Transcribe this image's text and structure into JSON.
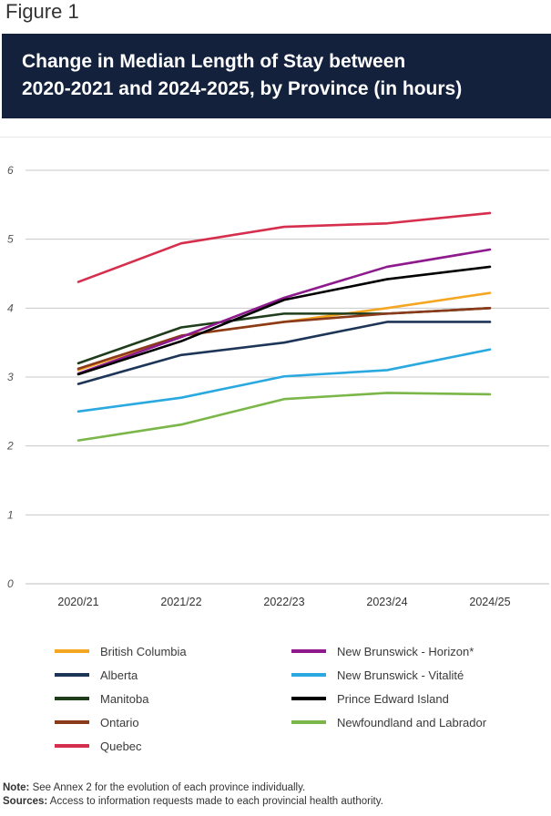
{
  "figure_label": "Figure 1",
  "title_lines": [
    "Change in Median Length of Stay between",
    "2020-2021 and 2024-2025, by Province (in hours)"
  ],
  "note_label": "Note:",
  "note_text": " See Annex 2 for the evolution of each province individually.",
  "sources_label": "Sources:",
  "sources_text": " Access to information requests made to each provincial health authority.",
  "chart_data": {
    "type": "line",
    "categories": [
      "2020/21",
      "2021/22",
      "2022/23",
      "2023/24",
      "2024/25"
    ],
    "ylim": [
      0,
      6
    ],
    "yticks": [
      "0",
      "1",
      "2",
      "3",
      "4",
      "5",
      "6"
    ],
    "grid": true,
    "legend_position": "bottom",
    "series": [
      {
        "name": "British Columbia",
        "color": "#f5a623",
        "values": [
          3.1,
          3.6,
          3.8,
          4.0,
          4.22
        ]
      },
      {
        "name": "Alberta",
        "color": "#1d3557",
        "values": [
          2.9,
          3.32,
          3.5,
          3.8,
          3.8
        ]
      },
      {
        "name": "Manitoba",
        "color": "#1f3d1a",
        "values": [
          3.2,
          3.72,
          3.92,
          3.92,
          4.0
        ]
      },
      {
        "name": "Ontario",
        "color": "#8b3a1a",
        "values": [
          3.12,
          3.6,
          3.8,
          3.92,
          4.0
        ]
      },
      {
        "name": "Quebec",
        "color": "#d62e4d",
        "values": [
          4.38,
          4.94,
          5.18,
          5.23,
          5.38
        ]
      },
      {
        "name": "New Brunswick - Horizon*",
        "color": "#8e1a8e",
        "values": [
          3.05,
          3.58,
          4.15,
          4.6,
          4.85
        ]
      },
      {
        "name": "New Brunswick - Vitalité",
        "color": "#29a9e0",
        "values": [
          2.5,
          2.7,
          3.01,
          3.1,
          3.4
        ]
      },
      {
        "name": "Prince Edward Island",
        "color": "#000000",
        "values": [
          3.04,
          3.52,
          4.12,
          4.42,
          4.6
        ]
      },
      {
        "name": "Newfoundland and Labrador",
        "color": "#7ab648",
        "values": [
          2.08,
          2.31,
          2.68,
          2.77,
          2.75
        ]
      }
    ]
  }
}
